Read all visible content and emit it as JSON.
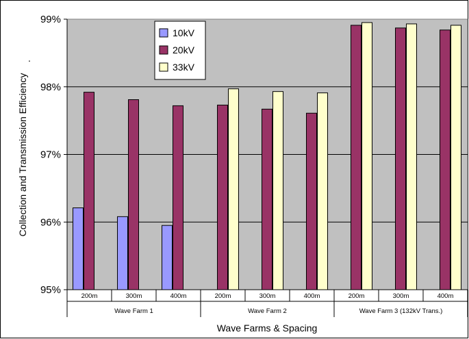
{
  "chart_data": {
    "type": "bar",
    "xlabel": "Wave Farms & Spacing",
    "ylabel": "Collection and Transmission Efficiency",
    "ylim": [
      95,
      99
    ],
    "yticks": [
      "95%",
      "96%",
      "97%",
      "98%",
      "99%"
    ],
    "y_side_mark": ".",
    "grid": true,
    "legend_position": "top-center",
    "groups": [
      {
        "label": "Wave Farm 1",
        "categories": [
          "200m",
          "300m",
          "400m"
        ]
      },
      {
        "label": "Wave Farm 2",
        "categories": [
          "200m",
          "300m",
          "400m"
        ]
      },
      {
        "label": "Wave Farm 3 (132kV Trans.)",
        "categories": [
          "200m",
          "300m",
          "400m"
        ]
      }
    ],
    "categories": [
      "200m",
      "300m",
      "400m",
      "200m",
      "300m",
      "400m",
      "200m",
      "300m",
      "400m"
    ],
    "series": [
      {
        "name": "10kV",
        "color": "#9999ff",
        "values": [
          96.21,
          96.08,
          95.95,
          null,
          null,
          null,
          null,
          null,
          null
        ]
      },
      {
        "name": "20kV",
        "color": "#993366",
        "values": [
          97.92,
          97.81,
          97.72,
          97.73,
          97.67,
          97.61,
          98.91,
          98.87,
          98.84
        ]
      },
      {
        "name": "33kV",
        "color": "#ffffcc",
        "values": [
          null,
          null,
          null,
          97.97,
          97.93,
          97.91,
          98.95,
          98.93,
          98.91
        ]
      }
    ],
    "plot_background": "#c0c0c0"
  }
}
